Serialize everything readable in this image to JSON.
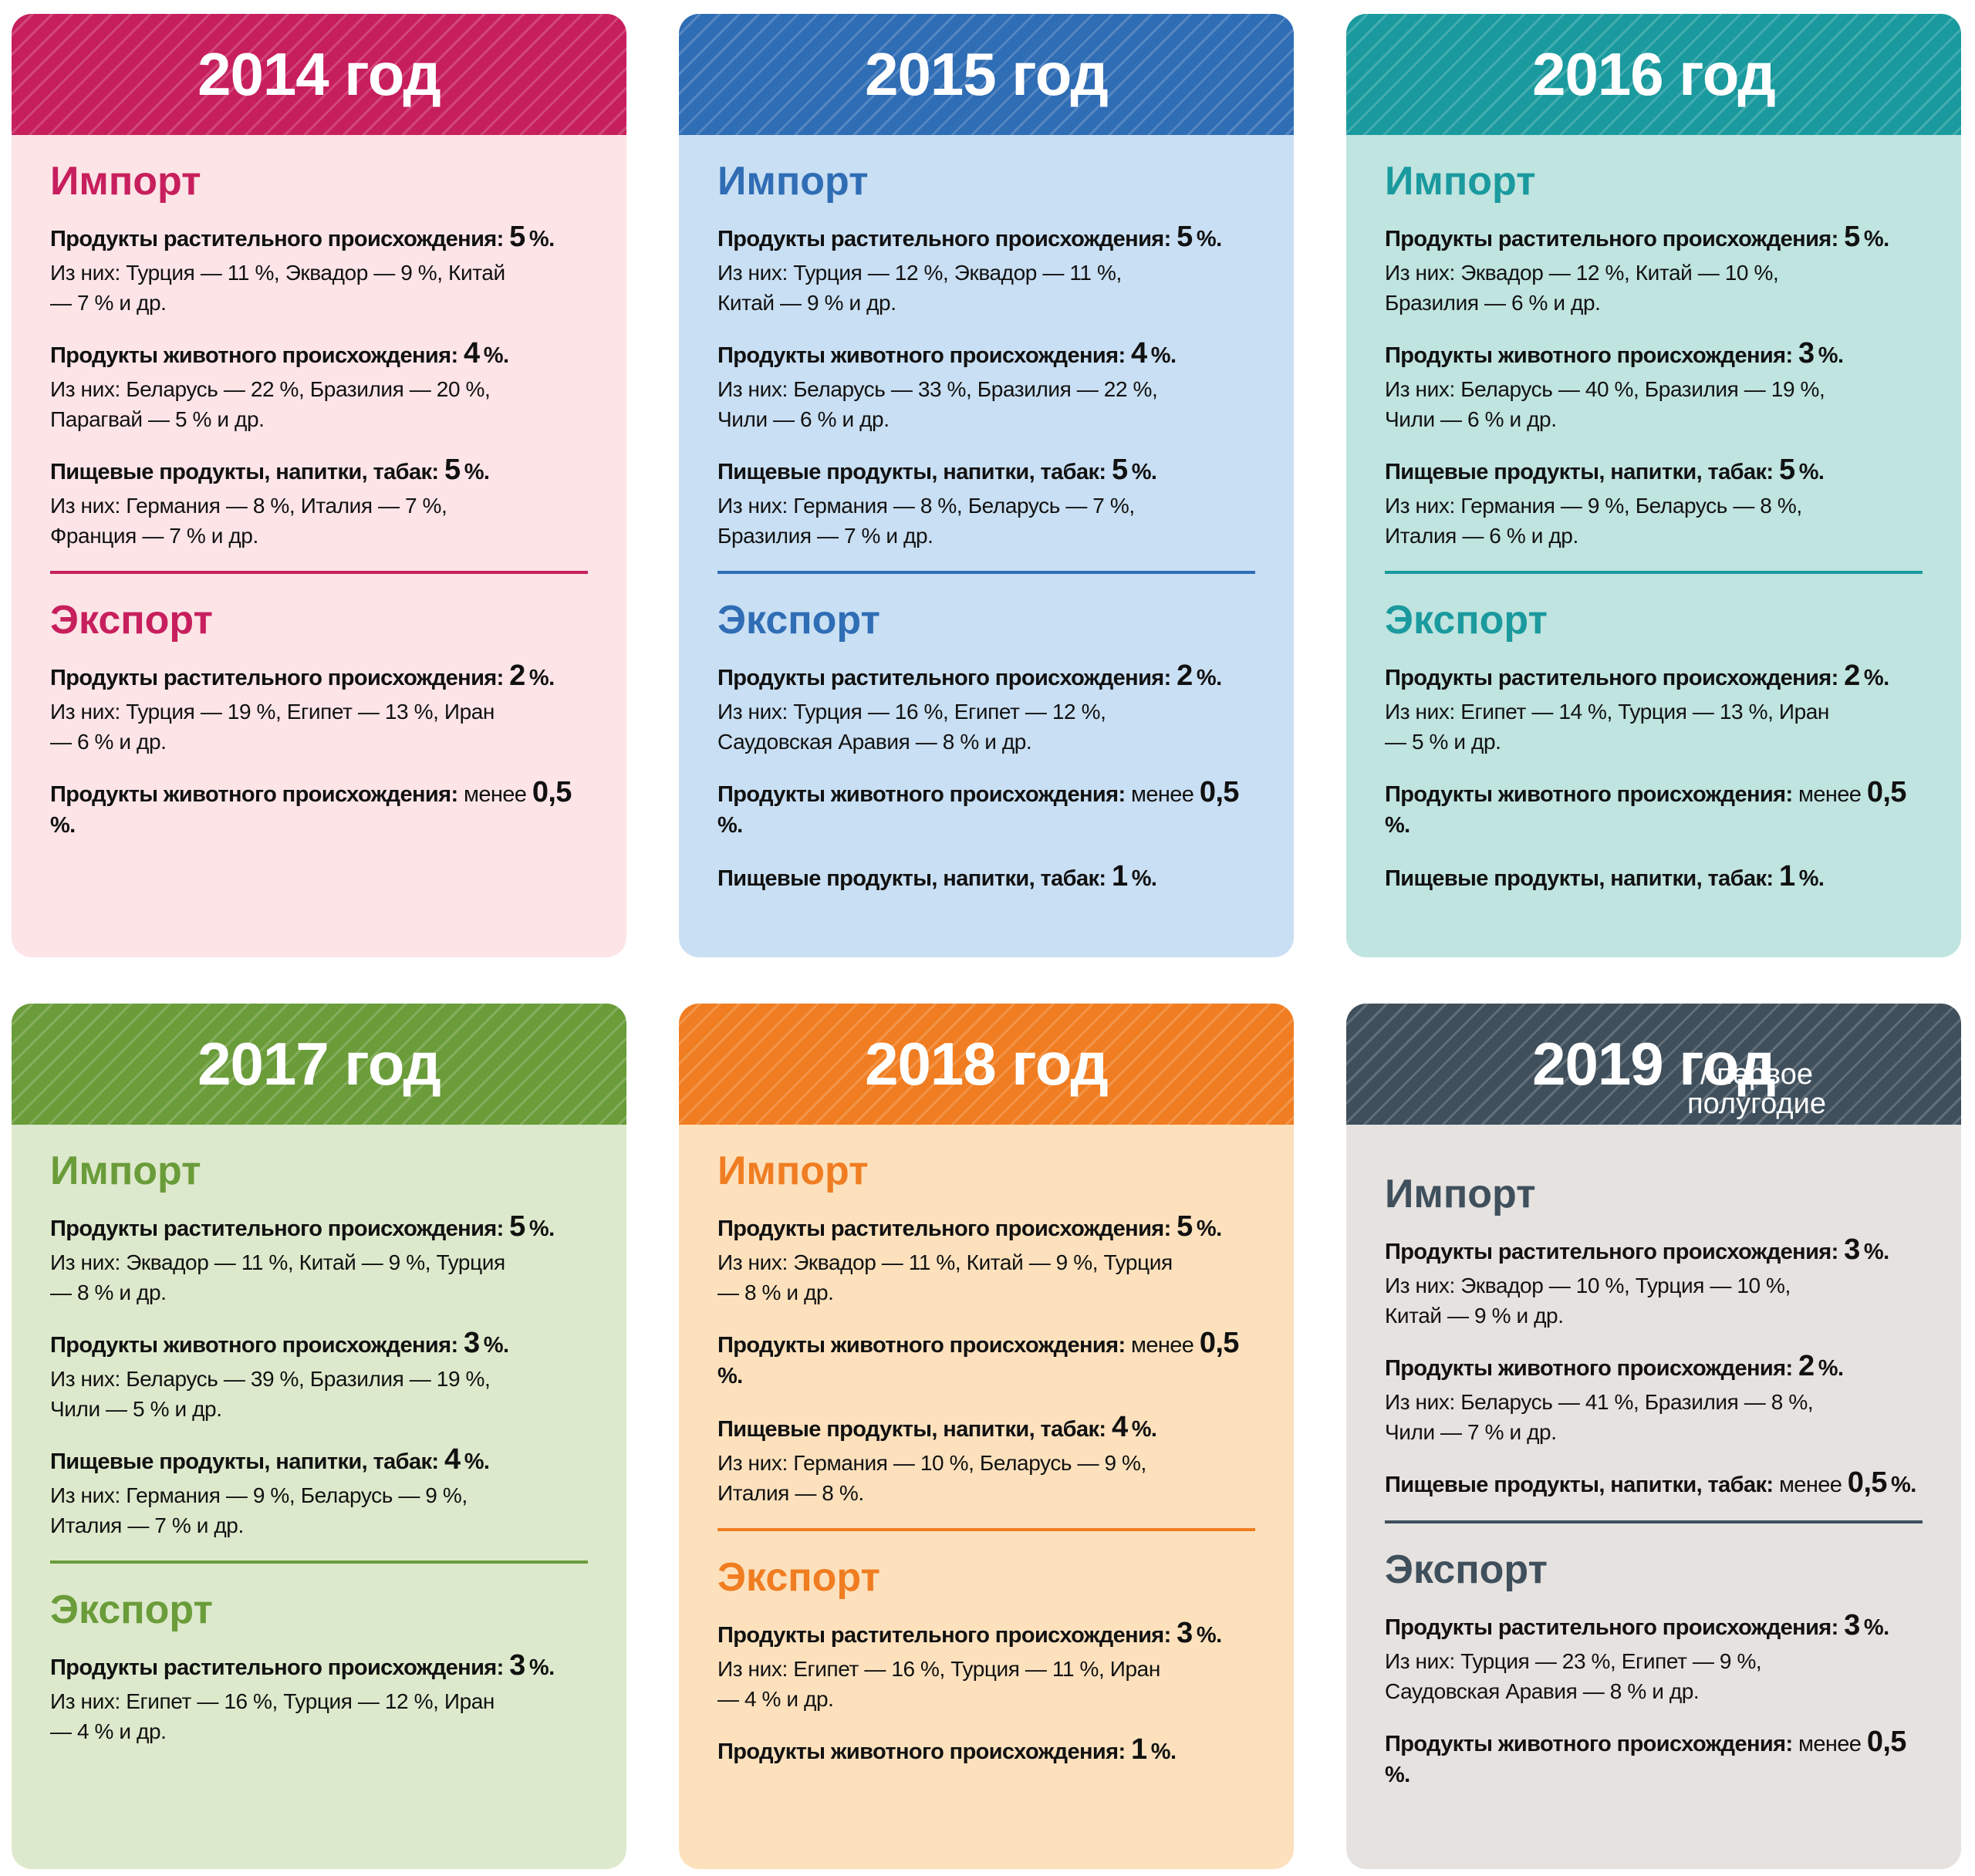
{
  "cards": [
    {
      "title": "2014 год",
      "color": "#c71f5d",
      "background": "#fce4e7",
      "sections": [
        {
          "heading": "Импорт",
          "items": [
            {
              "label": "Продукты растительного происхождения:",
              "value": "5",
              "suffix": "%.",
              "detail": "Из них: Турция — 11 %, Эквадор — 9 %, Китай — 7 % и др."
            },
            {
              "label": "Продукты животного происхождения:",
              "value": "4",
              "suffix": "%.",
              "detail": "Из них: Беларусь — 22 %, Бразилия — 20 %, Парагвай — 5 % и др."
            },
            {
              "label": "Пищевые продукты, напитки, табак:",
              "value": "5",
              "suffix": "%.",
              "detail": "Из них: Германия — 8 %, Италия — 7 %, Франция — 7 % и др."
            }
          ]
        },
        {
          "heading": "Экспорт",
          "items": [
            {
              "label": "Продукты растительного происхождения:",
              "value": "2",
              "suffix": "%.",
              "detail": "Из них: Турция — 19 %, Египет — 13 %, Иран — 6 % и др."
            },
            {
              "label": "Продукты животного происхождения:",
              "prefix": "менее",
              "value": "0,5",
              "suffix": "%."
            }
          ]
        }
      ]
    },
    {
      "title": "2015 год",
      "color": "#2f6db5",
      "background": "#c9dff3",
      "sections": [
        {
          "heading": "Импорт",
          "items": [
            {
              "label": "Продукты растительного происхождения:",
              "value": "5",
              "suffix": "%.",
              "detail": "Из них: Турция — 12 %, Эквадор — 11 %, Китай — 9 % и др."
            },
            {
              "label": "Продукты животного происхождения:",
              "value": "4",
              "suffix": "%.",
              "detail": "Из них: Беларусь — 33 %, Бразилия — 22 %, Чили — 6 % и др."
            },
            {
              "label": "Пищевые продукты, напитки, табак:",
              "value": "5",
              "suffix": "%.",
              "detail": "Из них: Германия — 8 %, Беларусь — 7 %, Бразилия — 7 % и др."
            }
          ]
        },
        {
          "heading": "Экспорт",
          "items": [
            {
              "label": "Продукты растительного происхождения:",
              "value": "2",
              "suffix": "%.",
              "detail": "Из них: Турция — 16 %, Египет — 12 %, Саудовская Аравия — 8 % и др."
            },
            {
              "label": "Продукты животного происхождения:",
              "prefix": "менее",
              "value": "0,5",
              "suffix": "%."
            },
            {
              "label": "Пищевые продукты, напитки, табак:",
              "value": "1",
              "suffix": "%."
            }
          ]
        }
      ]
    },
    {
      "title": "2016 год",
      "color": "#1a9a9e",
      "background": "#c0e4e0",
      "sections": [
        {
          "heading": "Импорт",
          "items": [
            {
              "label": "Продукты растительного происхождения:",
              "value": "5",
              "suffix": "%.",
              "detail": "Из них: Эквадор — 12 %, Китай — 10 %, Бразилия — 6 % и др."
            },
            {
              "label": "Продукты животного происхождения:",
              "value": "3",
              "suffix": "%.",
              "detail": "Из них: Беларусь — 40 %, Бразилия — 19 %, Чили — 6 % и др."
            },
            {
              "label": "Пищевые продукты, напитки, табак:",
              "value": "5",
              "suffix": "%.",
              "detail": "Из них: Германия — 9 %, Беларусь — 8 %, Италия — 6 % и др."
            }
          ]
        },
        {
          "heading": "Экспорт",
          "items": [
            {
              "label": "Продукты растительного происхождения:",
              "value": "2",
              "suffix": "%.",
              "detail": "Из них: Египет — 14 %, Турция — 13 %, Иран — 5 % и др."
            },
            {
              "label": "Продукты животного происхождения:",
              "prefix": "менее",
              "value": "0,5",
              "suffix": "%."
            },
            {
              "label": "Пищевые продукты, напитки, табак:",
              "value": "1",
              "suffix": "%."
            }
          ]
        }
      ]
    },
    {
      "title": "2017 год",
      "color": "#6a9c3a",
      "background": "#dde9cc",
      "sections": [
        {
          "heading": "Импорт",
          "items": [
            {
              "label": "Продукты растительного происхождения:",
              "value": "5",
              "suffix": "%.",
              "detail": "Из них: Эквадор — 11 %, Китай — 9 %, Турция — 8 % и др."
            },
            {
              "label": "Продукты животного происхождения:",
              "value": "3",
              "suffix": "%.",
              "detail": "Из них: Беларусь — 39 %, Бразилия — 19 %, Чили — 5 % и др."
            },
            {
              "label": "Пищевые продукты, напитки, табак:",
              "value": "4",
              "suffix": "%.",
              "detail": "Из них: Германия — 9 %, Беларусь — 9 %, Италия — 7 % и др."
            }
          ]
        },
        {
          "heading": "Экспорт",
          "items": [
            {
              "label": "Продукты растительного происхождения:",
              "value": "3",
              "suffix": "%.",
              "detail": "Из них: Египет — 16 %, Турция — 12 %, Иран — 4 % и др."
            }
          ]
        }
      ]
    },
    {
      "title": "2018 год",
      "color": "#f07d21",
      "background": "#fde1bd",
      "sections": [
        {
          "heading": "Импорт",
          "items": [
            {
              "label": "Продукты растительного происхождения:",
              "value": "5",
              "suffix": "%.",
              "detail": "Из них: Эквадор — 11 %, Китай — 9 %, Турция — 8 % и др."
            },
            {
              "label": "Продукты животного происхождения:",
              "prefix": "менее",
              "value": "0,5",
              "suffix": "%."
            },
            {
              "label": "Пищевые продукты, напитки, табак:",
              "value": "4",
              "suffix": "%.",
              "detail": "Из них: Германия — 10 %, Беларусь — 9 %, Италия — 8 %."
            }
          ]
        },
        {
          "heading": "Экспорт",
          "items": [
            {
              "label": "Продукты растительного происхождения:",
              "value": "3",
              "suffix": "%.",
              "detail": "Из них: Египет — 16 %, Турция — 11 %, Иран — 4 % и др."
            },
            {
              "label": "Продукты животного происхождения:",
              "value": "1",
              "suffix": "%."
            }
          ]
        }
      ]
    },
    {
      "title": "2019 год",
      "subtitle": "/ первое полугодие",
      "color": "#3f4f5c",
      "background": "#e6e2df",
      "sections": [
        {
          "heading": "Импорт",
          "items": [
            {
              "label": "Продукты растительного происхождения:",
              "value": "3",
              "suffix": "%.",
              "detail": "Из них: Эквадор — 10 %, Турция — 10 %, Китай — 9 % и др."
            },
            {
              "label": "Продукты животного происхождения:",
              "value": "2",
              "suffix": "%.",
              "detail": "Из них: Беларусь — 41 %, Бразилия — 8 %, Чили — 7 % и др."
            },
            {
              "label": "Пищевые продукты, напитки, табак:",
              "prefix": "менее",
              "value": "0,5",
              "suffix": "%."
            }
          ]
        },
        {
          "heading": "Экспорт",
          "items": [
            {
              "label": "Продукты растительного происхождения:",
              "value": "3",
              "suffix": "%.",
              "detail": "Из них: Турция — 23 %, Египет — 9 %, Саудовская Аравия — 8 % и др."
            },
            {
              "label": "Продукты животного происхождения:",
              "prefix": "менее",
              "value": "0,5",
              "suffix": "%."
            }
          ]
        }
      ]
    }
  ]
}
